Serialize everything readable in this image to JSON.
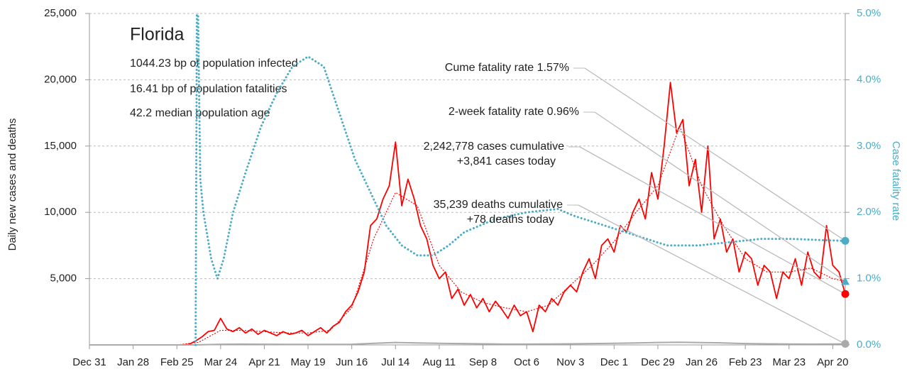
{
  "chart_data": {
    "type": "line",
    "title": "Florida",
    "subtitle_lines": [
      "1044.23 bp of population infected",
      "16.41 bp of population fatalities",
      "42.2 median population age"
    ],
    "y_label": "Daily new cases and deaths",
    "y2_label": "Case fatality rate",
    "xlim": [
      0,
      484
    ],
    "xticks": [
      {
        "value": 0,
        "label": "Dec 31"
      },
      {
        "value": 28,
        "label": "Jan 28"
      },
      {
        "value": 56,
        "label": "Feb 25"
      },
      {
        "value": 84,
        "label": "Mar 24"
      },
      {
        "value": 112,
        "label": "Apr 21"
      },
      {
        "value": 140,
        "label": "May 19"
      },
      {
        "value": 168,
        "label": "Jun 16"
      },
      {
        "value": 196,
        "label": "Jul 14"
      },
      {
        "value": 224,
        "label": "Aug 11"
      },
      {
        "value": 252,
        "label": "Sep 8"
      },
      {
        "value": 280,
        "label": "Oct 6"
      },
      {
        "value": 308,
        "label": "Nov 3"
      },
      {
        "value": 336,
        "label": "Dec 1"
      },
      {
        "value": 364,
        "label": "Dec 29"
      },
      {
        "value": 392,
        "label": "Jan 26"
      },
      {
        "value": 420,
        "label": "Feb 23"
      },
      {
        "value": 448,
        "label": "Mar 23"
      },
      {
        "value": 476,
        "label": "Apr 20"
      }
    ],
    "ylim": [
      0,
      25000
    ],
    "yticks": [
      {
        "value": 5000,
        "label": "5,000"
      },
      {
        "value": 10000,
        "label": "10,000"
      },
      {
        "value": 15000,
        "label": "15,000"
      },
      {
        "value": 20000,
        "label": "20,000"
      },
      {
        "value": 25000,
        "label": "25,000"
      }
    ],
    "y2lim": [
      0,
      5
    ],
    "y2ticks": [
      {
        "value": 0,
        "label": "0.0%"
      },
      {
        "value": 1,
        "label": "1.0%"
      },
      {
        "value": 2,
        "label": "2.0%"
      },
      {
        "value": 3,
        "label": "3.0%"
      },
      {
        "value": 4,
        "label": "4.0%"
      },
      {
        "value": 5,
        "label": "5.0%"
      }
    ],
    "grid": true,
    "series": [
      {
        "color": "#ff0000",
        "style": "solid",
        "x": [
          0,
          14,
          28,
          42,
          56,
          60,
          64,
          68,
          72,
          76,
          80,
          84,
          88,
          92,
          96,
          100,
          104,
          108,
          112,
          116,
          120,
          124,
          128,
          132,
          136,
          140,
          144,
          148,
          152,
          156,
          160,
          164,
          168,
          172,
          176,
          180,
          184,
          188,
          192,
          196,
          200,
          204,
          208,
          212,
          216,
          220,
          224,
          228,
          232,
          236,
          240,
          244,
          248,
          252,
          256,
          260,
          264,
          268,
          272,
          276,
          280,
          284,
          288,
          292,
          296,
          300,
          304,
          308,
          312,
          316,
          320,
          324,
          328,
          332,
          336,
          340,
          344,
          348,
          352,
          356,
          360,
          364,
          368,
          372,
          376,
          380,
          384,
          388,
          392,
          396,
          400,
          404,
          408,
          412,
          416,
          420,
          424,
          428,
          432,
          436,
          440,
          444,
          448,
          452,
          456,
          460,
          464,
          468,
          472,
          476,
          480,
          484
        ],
        "values": [
          0,
          0,
          0,
          0,
          0,
          0,
          50,
          300,
          600,
          1000,
          1100,
          2000,
          1200,
          1000,
          1300,
          900,
          1200,
          800,
          1100,
          900,
          700,
          1000,
          800,
          900,
          1100,
          700,
          1000,
          1300,
          900,
          1400,
          1700,
          2500,
          3000,
          4000,
          5500,
          9000,
          9500,
          11000,
          12000,
          15300,
          10500,
          12500,
          11000,
          9000,
          8000,
          6000,
          5000,
          5500,
          3500,
          4200,
          3000,
          3800,
          2800,
          3500,
          2500,
          3300,
          2700,
          2000,
          3000,
          2200,
          2500,
          1000,
          3000,
          2500,
          3500,
          3000,
          4000,
          4500,
          4000,
          5500,
          6500,
          5000,
          7500,
          8000,
          7000,
          9000,
          8500,
          10000,
          11000,
          9500,
          13000,
          11000,
          15000,
          19800,
          16000,
          17000,
          12000,
          14000,
          10000,
          15000,
          8000,
          9500,
          7000,
          8000,
          5500,
          7000,
          6500,
          4500,
          6000,
          5500,
          3500,
          5500,
          5000,
          6500,
          4500,
          7000,
          5500,
          5000,
          9000,
          6000,
          5500,
          3841
        ]
      },
      {
        "color": "#ff0000",
        "style": "dotted",
        "x": [
          0,
          56,
          70,
          84,
          98,
          112,
          126,
          140,
          154,
          168,
          182,
          196,
          210,
          224,
          238,
          252,
          266,
          280,
          294,
          308,
          322,
          336,
          350,
          364,
          378,
          392,
          406,
          420,
          434,
          448,
          462,
          476,
          484
        ],
        "values": [
          0,
          0,
          200,
          1100,
          1100,
          1000,
          900,
          900,
          1100,
          2800,
          8000,
          11500,
          10500,
          6000,
          4000,
          3200,
          2800,
          2500,
          3000,
          4500,
          6000,
          7800,
          10000,
          12000,
          16500,
          12000,
          9000,
          6500,
          5500,
          5500,
          5800,
          5000,
          4800
        ]
      },
      {
        "color": "#aaaaaa",
        "style": "solid",
        "x": [
          0,
          56,
          70,
          84,
          98,
          112,
          126,
          140,
          154,
          168,
          182,
          196,
          210,
          224,
          238,
          252,
          266,
          280,
          294,
          308,
          322,
          336,
          350,
          364,
          378,
          392,
          406,
          420,
          434,
          448,
          462,
          476,
          484
        ],
        "values": [
          0,
          0,
          5,
          50,
          60,
          50,
          40,
          40,
          40,
          50,
          120,
          180,
          150,
          120,
          100,
          80,
          60,
          60,
          70,
          80,
          100,
          120,
          150,
          180,
          200,
          170,
          150,
          100,
          80,
          70,
          60,
          70,
          78
        ]
      },
      {
        "color": "#4bacc6",
        "style": "dotted",
        "axis": "y2",
        "x": [
          68,
          69,
          71,
          73,
          78,
          82,
          86,
          92,
          100,
          110,
          120,
          130,
          140,
          150,
          160,
          170,
          180,
          190,
          200,
          210,
          220,
          230,
          240,
          260,
          280,
          300,
          310,
          330,
          350,
          370,
          390,
          410,
          430,
          450,
          470,
          484
        ],
        "values": [
          0,
          6,
          2.5,
          2.0,
          1.3,
          1.0,
          1.3,
          2.0,
          2.6,
          3.3,
          3.8,
          4.2,
          4.35,
          4.2,
          3.5,
          2.8,
          2.3,
          1.8,
          1.5,
          1.35,
          1.35,
          1.5,
          1.7,
          1.9,
          2.0,
          2.05,
          1.95,
          1.8,
          1.65,
          1.5,
          1.5,
          1.55,
          1.6,
          1.6,
          1.58,
          1.57
        ]
      }
    ],
    "annotations": [
      {
        "lines": [
          "Cume fatality rate 1.57%"
        ],
        "value": 1.57,
        "axis": "y2",
        "color": "#4bacc6",
        "marker": "circle"
      },
      {
        "lines": [
          "2-week fatality rate 0.96%"
        ],
        "value": 0.96,
        "axis": "y2",
        "color": "#4bacc6",
        "marker": "triangle"
      },
      {
        "lines": [
          "2,242,778 cases cumulative",
          "+3,841 cases today"
        ],
        "value": 3841,
        "axis": "y",
        "color": "#ff0000",
        "marker": "circle"
      },
      {
        "lines": [
          "35,239 deaths cumulative",
          "+78 deaths today"
        ],
        "value": 78,
        "axis": "y",
        "color": "#aaaaaa",
        "marker": "circle"
      }
    ]
  }
}
